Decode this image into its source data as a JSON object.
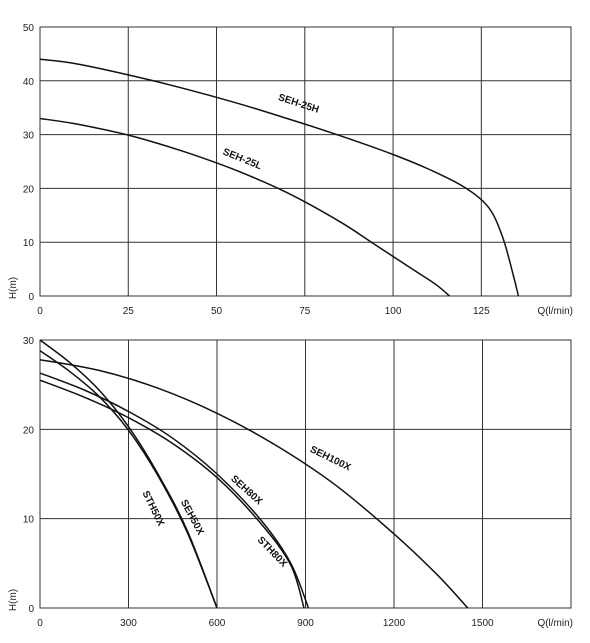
{
  "chart_data": [
    {
      "type": "line",
      "xlabel": "Q(l/min)",
      "ylabel": "H(m)",
      "xlim": [
        0,
        150
      ],
      "ylim": [
        0,
        50
      ],
      "xticks": [
        0,
        25,
        50,
        75,
        100,
        125
      ],
      "yticks": [
        0,
        10,
        20,
        30,
        40,
        50
      ],
      "grid": true,
      "series": [
        {
          "name": "SEH-25H",
          "x": [
            0,
            10,
            25,
            40,
            55,
            70,
            85,
            100,
            110,
            120,
            127,
            131,
            134,
            135.5
          ],
          "y": [
            44,
            43.2,
            41.1,
            38.7,
            36,
            33,
            29.8,
            26.3,
            23.6,
            20.3,
            16.5,
            11,
            4,
            0
          ]
        },
        {
          "name": "SEH-25L",
          "x": [
            0,
            10,
            25,
            40,
            55,
            70,
            85,
            95,
            105,
            112,
            116
          ],
          "y": [
            33,
            32,
            29.9,
            27,
            23.5,
            19.2,
            13.8,
            9.5,
            5.2,
            2.2,
            0
          ]
        }
      ]
    },
    {
      "type": "line",
      "xlabel": "Q(l/min)",
      "ylabel": "H(m)",
      "xlim": [
        0,
        1800
      ],
      "ylim": [
        0,
        30
      ],
      "xticks": [
        0,
        300,
        600,
        900,
        1200,
        1500
      ],
      "yticks": [
        0,
        10,
        20,
        30
      ],
      "grid": true,
      "series": [
        {
          "name": "STH50X",
          "x": [
            0,
            100,
            200,
            300,
            400,
            500,
            600
          ],
          "y": [
            28.8,
            26.5,
            23.7,
            19.9,
            14.8,
            8.4,
            0
          ]
        },
        {
          "name": "SEH50X",
          "x": [
            0,
            100,
            200,
            300,
            400,
            500,
            600
          ],
          "y": [
            30,
            27.5,
            24.4,
            20.3,
            15,
            8.6,
            0
          ]
        },
        {
          "name": "SEH80X",
          "x": [
            0,
            150,
            300,
            450,
            600,
            750,
            850,
            910
          ],
          "y": [
            26.3,
            24.4,
            22,
            19,
            15,
            9.8,
            5,
            0
          ]
        },
        {
          "name": "STH80X",
          "x": [
            0,
            150,
            300,
            450,
            600,
            750,
            850,
            895
          ],
          "y": [
            25.5,
            23.6,
            21.3,
            18.4,
            14.6,
            9.4,
            4.8,
            0
          ]
        },
        {
          "name": "SEH100X",
          "x": [
            0,
            200,
            400,
            600,
            800,
            1000,
            1200,
            1350,
            1450
          ],
          "y": [
            27.8,
            26.6,
            24.6,
            21.8,
            18.2,
            13.8,
            8.3,
            3.6,
            0
          ]
        }
      ]
    }
  ]
}
